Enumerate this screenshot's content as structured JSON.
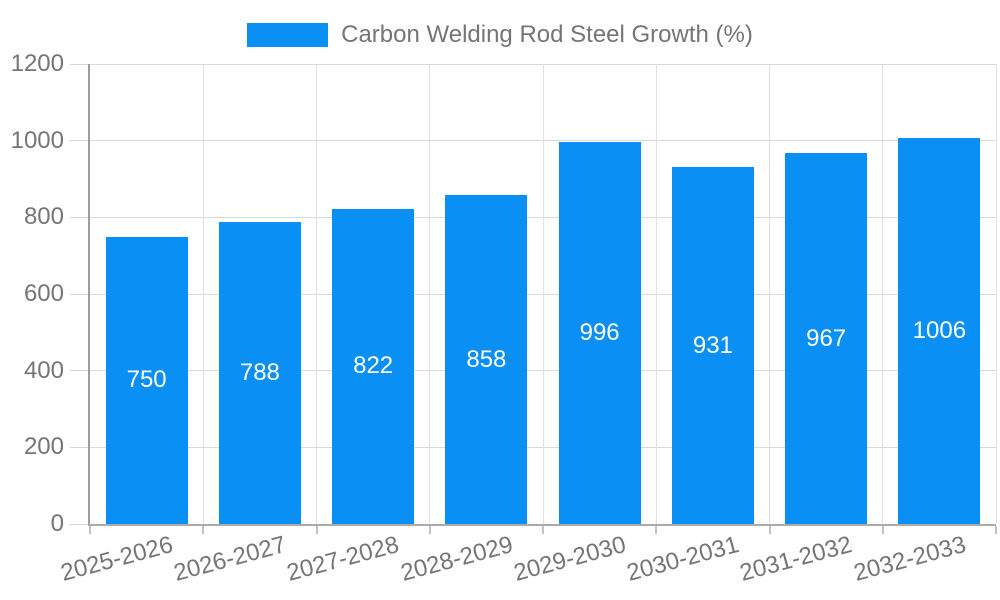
{
  "chart_data": {
    "type": "bar",
    "title": "Carbon Welding Rod Steel Growth (%)",
    "legend": {
      "label": "Carbon Welding Rod Steel Growth (%)",
      "position": "top-center",
      "swatch_shape": "rectangle"
    },
    "categories": [
      "2025-2026",
      "2026-2027",
      "2027-2028",
      "2028-2029",
      "2029-2030",
      "2030-2031",
      "2031-2032",
      "2032-2033"
    ],
    "series": [
      {
        "name": "Carbon Welding Rod Steel Growth (%)",
        "values": [
          750,
          788,
          822,
          858,
          996,
          931,
          967,
          1006
        ]
      }
    ],
    "value_labels": [
      "750",
      "788",
      "822",
      "858",
      "996",
      "931",
      "967",
      "1006"
    ],
    "xlabel": "",
    "ylabel": "",
    "ylim": [
      0,
      1200
    ],
    "yticks": [
      0,
      200,
      400,
      600,
      800,
      1000,
      1200
    ],
    "grid": "horizontal-and-vertical",
    "x_label_rotation_deg": -15,
    "colors": {
      "bar": "#0a90f5",
      "value_label": "#ffffff",
      "axis_text": "#757575",
      "gridline": "#dadada",
      "axis_line": "#9d9d9d",
      "background": "#ffffff"
    }
  }
}
